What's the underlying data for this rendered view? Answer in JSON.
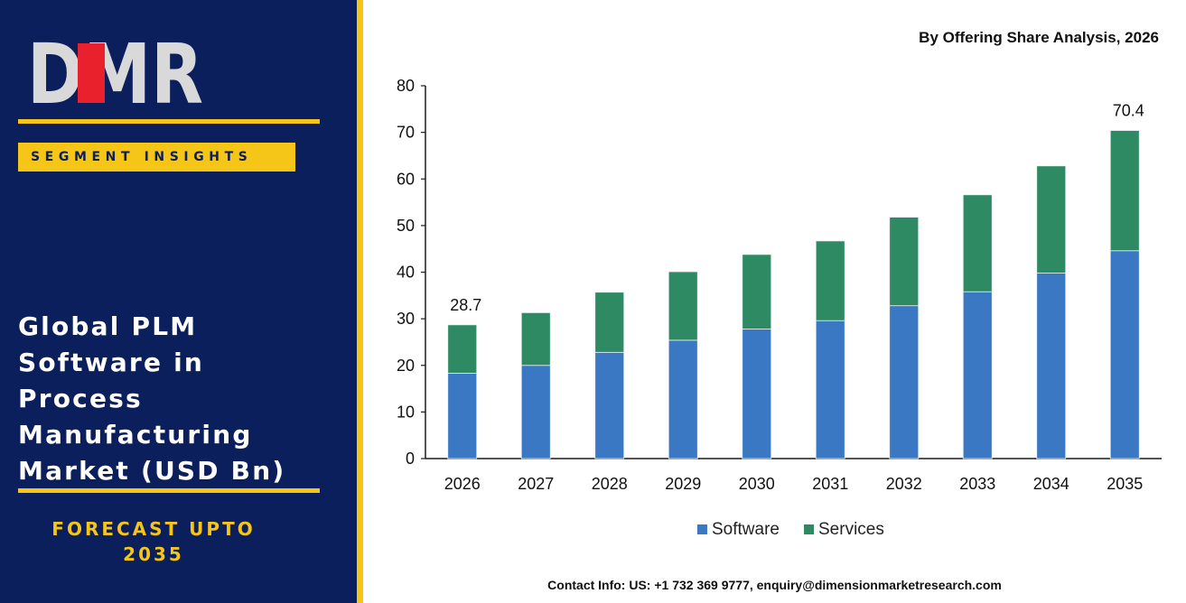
{
  "brand": {
    "logo_text": "DMR"
  },
  "sidebar": {
    "segment_label": "SEGMENT INSIGHTS",
    "title_lines": [
      "Global PLM",
      "Software in",
      "Process",
      "Manufacturing",
      "Market (USD Bn)"
    ],
    "forecast_lines": [
      "FORECAST UPTO",
      "2035"
    ]
  },
  "colors": {
    "panel": "#0b1f5c",
    "accent": "#f5c518",
    "software": "#3a78c3",
    "services": "#2e8a63"
  },
  "chart_data": {
    "type": "bar",
    "stacked": true,
    "subtitle": "By Offering Share Analysis, 2026",
    "categories": [
      "2026",
      "2027",
      "2028",
      "2029",
      "2030",
      "2031",
      "2032",
      "2033",
      "2034",
      "2035"
    ],
    "series": [
      {
        "name": "Software",
        "values": [
          18.3,
          20.0,
          22.8,
          25.4,
          27.8,
          29.6,
          32.8,
          35.8,
          39.8,
          44.6
        ]
      },
      {
        "name": "Services",
        "values": [
          10.4,
          11.3,
          12.9,
          14.7,
          16.0,
          17.1,
          19.0,
          20.8,
          23.0,
          25.8
        ]
      }
    ],
    "ylim": [
      0,
      80
    ],
    "yticks": [
      0,
      10,
      20,
      30,
      40,
      50,
      60,
      70,
      80
    ],
    "annotations": [
      {
        "category": "2026",
        "text": "28.7"
      },
      {
        "category": "2035",
        "text": "70.4"
      }
    ],
    "legend_position": "bottom",
    "grid": false
  },
  "footer": {
    "contact": "Contact Info: US: +1 732 369 9777, enquiry@dimensionmarketresearch.com"
  }
}
